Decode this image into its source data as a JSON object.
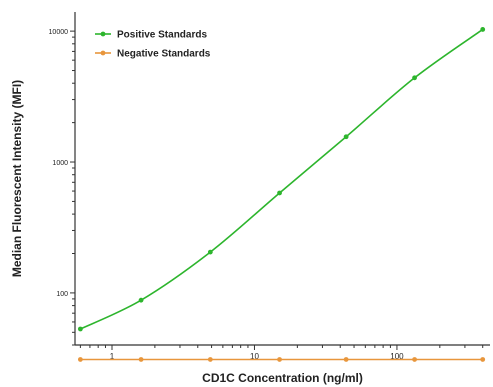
{
  "chart_data": {
    "type": "line",
    "xlabel": "CD1C Concentration (ng/ml)",
    "ylabel": "Median Fluorescent Intensity (MFI)",
    "x_scale": "log",
    "y_scale": "log",
    "xlim": [
      0.55,
      450
    ],
    "ylim": [
      40,
      14000
    ],
    "x_ticks": [
      {
        "value": 1,
        "label": "1"
      },
      {
        "value": 10,
        "label": "10"
      },
      {
        "value": 100,
        "label": "100"
      }
    ],
    "y_ticks": [
      {
        "value": 100,
        "label": "100"
      },
      {
        "value": 1000,
        "label": "1000"
      },
      {
        "value": 10000,
        "label": "10000"
      }
    ],
    "grid": false,
    "legend_position": "top-left",
    "series": [
      {
        "name": "Positive Standards",
        "color": "#2db52d",
        "points": [
          {
            "x": 0.6,
            "y": 53
          },
          {
            "x": 1.6,
            "y": 88
          },
          {
            "x": 4.9,
            "y": 205
          },
          {
            "x": 15,
            "y": 580
          },
          {
            "x": 44,
            "y": 1560
          },
          {
            "x": 133,
            "y": 4400
          },
          {
            "x": 400,
            "y": 10300
          }
        ]
      },
      {
        "name": "Negative Standards",
        "color": "#e8963c",
        "points": [
          {
            "x": 0.6,
            "y": 31
          },
          {
            "x": 1.6,
            "y": 31
          },
          {
            "x": 4.9,
            "y": 31
          },
          {
            "x": 15,
            "y": 31
          },
          {
            "x": 44,
            "y": 31
          },
          {
            "x": 133,
            "y": 31
          },
          {
            "x": 400,
            "y": 31
          }
        ]
      }
    ]
  }
}
